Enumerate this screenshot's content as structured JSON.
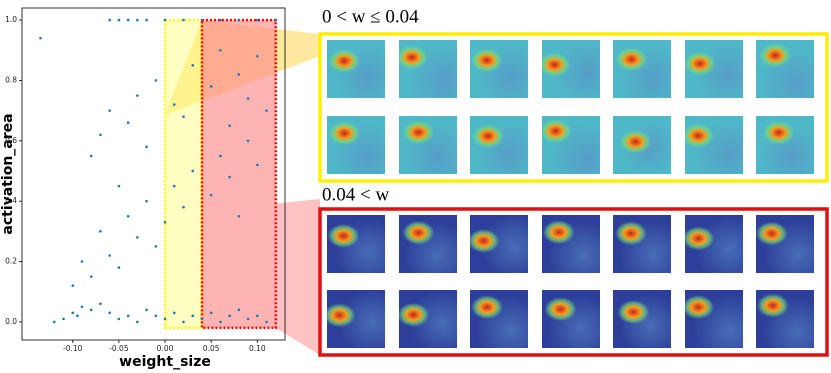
{
  "chart_data": {
    "type": "scatter",
    "xlabel": "weight_size",
    "ylabel": "activation_area",
    "xlim": [
      -0.155,
      0.13
    ],
    "ylim": [
      -0.06,
      1.04
    ],
    "xticks": [
      {
        "value": -0.1,
        "label": "-0.10"
      },
      {
        "value": -0.05,
        "label": "-0.05"
      },
      {
        "value": 0,
        "label": "0.00"
      },
      {
        "value": 0.05,
        "label": "0.05"
      },
      {
        "value": 0.1,
        "label": "0.10"
      }
    ],
    "yticks": [
      {
        "value": 0,
        "label": "0.0"
      },
      0.2,
      0.4,
      0.6,
      0.8,
      {
        "value": 1,
        "label": "1.0"
      }
    ],
    "series": [
      {
        "color": "#1f77b4",
        "x": [
          -0.135,
          -0.12,
          -0.11,
          -0.1,
          -0.095,
          -0.09,
          -0.08,
          -0.07,
          -0.06,
          -0.05,
          -0.04,
          -0.03,
          -0.02,
          -0.01,
          0.0,
          0.01,
          0.02,
          0.03,
          0.04,
          0.05,
          0.06,
          0.07,
          0.08,
          0.09,
          0.1,
          0.11,
          -0.1,
          -0.09,
          -0.08,
          -0.07,
          -0.06,
          -0.05,
          -0.04,
          -0.03,
          -0.02,
          -0.01,
          0.0,
          0.01,
          0.02,
          0.03,
          0.05,
          0.06,
          0.07,
          0.08,
          0.09,
          0.1,
          -0.08,
          -0.07,
          -0.06,
          -0.05,
          -0.04,
          -0.03,
          -0.02,
          -0.01,
          0.01,
          0.02,
          0.03,
          0.05,
          0.06,
          0.07,
          0.08,
          0.09,
          0.1,
          0.11,
          -0.06,
          -0.05,
          -0.04,
          -0.03,
          -0.02,
          0.0,
          0.02,
          0.04,
          0.06,
          0.08,
          0.1,
          0.12
        ],
        "values": [
          0.94,
          0.0,
          0.01,
          0.03,
          0.02,
          0.05,
          0.04,
          0.06,
          0.03,
          0.01,
          0.02,
          0.0,
          0.04,
          0.02,
          0.01,
          0.03,
          0.0,
          0.02,
          0.01,
          0.03,
          0.0,
          0.02,
          0.04,
          0.01,
          0.02,
          0.0,
          0.12,
          0.2,
          0.15,
          0.3,
          0.22,
          0.18,
          0.35,
          0.28,
          0.4,
          0.25,
          0.33,
          0.45,
          0.38,
          0.5,
          0.42,
          0.55,
          0.48,
          0.35,
          0.6,
          0.52,
          0.55,
          0.62,
          0.7,
          0.45,
          0.66,
          0.75,
          0.58,
          0.8,
          0.72,
          0.68,
          0.85,
          0.78,
          0.9,
          0.65,
          0.82,
          0.74,
          0.88,
          0.7,
          1.0,
          1.0,
          1.0,
          1.0,
          1.0,
          1.0,
          1.0,
          1.0,
          1.0,
          1.0,
          1.0,
          1.0
        ]
      }
    ],
    "regions": [
      {
        "label": "0 < w ≤ 0.04",
        "x": [
          0,
          0.04
        ],
        "y": [
          -0.02,
          1.0
        ],
        "color": "#ffff00"
      },
      {
        "label": "0.04 < w",
        "x": [
          0.04,
          0.12
        ],
        "y": [
          -0.02,
          1.0
        ],
        "color": "#ff0000"
      }
    ]
  }
}
